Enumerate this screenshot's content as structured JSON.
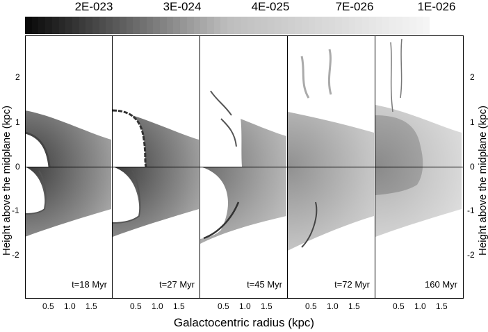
{
  "colorbar": {
    "labels": [
      "2E-023",
      "3E-024",
      "4E-025",
      "7E-026",
      "1E-026"
    ],
    "colors": [
      "#0a0a0a",
      "#bdbdbd",
      "#f5f5f5"
    ]
  },
  "panels": [
    {
      "time_label": "t=18 Myr"
    },
    {
      "time_label": "t=27 Myr"
    },
    {
      "time_label": "t=45 Myr"
    },
    {
      "time_label": "t=72 Myr"
    },
    {
      "time_label": "160 Myr"
    }
  ],
  "axes": {
    "ylabel_left": "Height above the midplane (kpc)",
    "ylabel_right": "Height above the midplane (kpc)",
    "xlabel": "Galactocentric radius (kpc)",
    "yticks": [
      "2",
      "1",
      "0",
      "-1",
      "-2"
    ],
    "xticks": [
      "0.5",
      "1.0",
      "1.5"
    ]
  }
}
